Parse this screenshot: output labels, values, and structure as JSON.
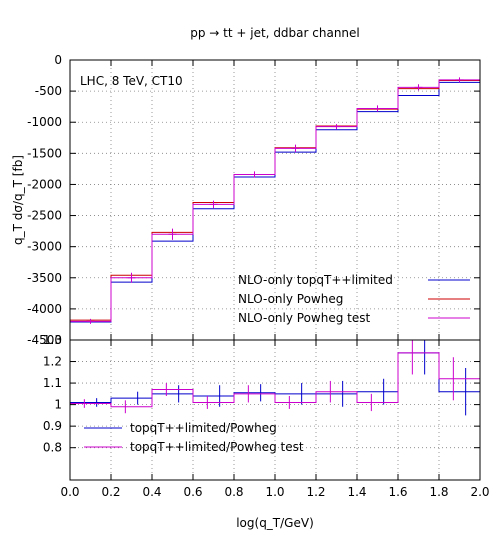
{
  "chart_data": [
    {
      "type": "line",
      "title": "pp → tt + jet, ddbar channel",
      "annotation": "LHC, 8 TeV, CT10",
      "xlabel": "",
      "ylabel": "q_T dσ/q_T [fb]",
      "xlim": [
        0.0,
        2.0
      ],
      "ylim": [
        -4500,
        0
      ],
      "y_ticks": [
        "0",
        "-500",
        "-1000",
        "-1500",
        "-2000",
        "-2500",
        "-3000",
        "-3500",
        "-4000",
        "-4500"
      ],
      "grid": true,
      "legend_position": "bottom-right",
      "x_edges": [
        0.0,
        0.2,
        0.4,
        0.6,
        0.8,
        1.0,
        1.2,
        1.4,
        1.6,
        1.8,
        2.0
      ],
      "series": [
        {
          "name": "NLO-only topqT++limited",
          "color": "#0000cc",
          "values": [
            -4210,
            -3570,
            -2910,
            -2390,
            -1880,
            -1480,
            -1120,
            -830,
            -570,
            -360
          ]
        },
        {
          "name": "NLO-only Powheg",
          "color": "#cc0000",
          "values": [
            -4180,
            -3460,
            -2770,
            -2290,
            -1840,
            -1410,
            -1060,
            -790,
            -460,
            -330
          ]
        },
        {
          "name": "NLO-only Powheg test",
          "color": "#cc00cc",
          "values": [
            -4200,
            -3500,
            -2800,
            -2320,
            -1840,
            -1420,
            -1070,
            -780,
            -440,
            -320
          ],
          "errors": [
            40,
            80,
            90,
            60,
            50,
            60,
            40,
            50,
            50,
            40
          ]
        }
      ]
    },
    {
      "type": "line",
      "xlabel": "log(q_T/GeV)",
      "ylabel": "",
      "xlim": [
        0.0,
        2.0
      ],
      "ylim": [
        0.65,
        1.3
      ],
      "x_ticks": [
        "0.0",
        "0.2",
        "0.4",
        "0.6",
        "0.8",
        "1.0",
        "1.2",
        "1.4",
        "1.6",
        "1.8",
        "2.0"
      ],
      "y_ticks": [
        "1.3",
        "1.2",
        "1.1",
        "1",
        "0.9",
        "0.8"
      ],
      "grid": true,
      "legend_position": "bottom-left",
      "x_edges": [
        0.0,
        0.2,
        0.4,
        0.6,
        0.8,
        1.0,
        1.2,
        1.4,
        1.6,
        1.8,
        2.0
      ],
      "series": [
        {
          "name": "topqT++limited/Powheg",
          "color": "#0000cc",
          "values": [
            1.01,
            1.03,
            1.05,
            1.04,
            1.055,
            1.05,
            1.05,
            1.06,
            1.24,
            1.06
          ],
          "errors": [
            0.02,
            0.03,
            0.04,
            0.05,
            0.04,
            0.05,
            0.06,
            0.06,
            0.1,
            0.11
          ]
        },
        {
          "name": "topqT++limited/Powheg test",
          "color": "#cc00cc",
          "values": [
            1.005,
            0.99,
            1.07,
            1.01,
            1.05,
            1.01,
            1.06,
            1.01,
            1.24,
            1.12
          ],
          "errors": [
            0.02,
            0.03,
            0.03,
            0.03,
            0.04,
            0.03,
            0.05,
            0.04,
            0.1,
            0.1
          ]
        }
      ]
    }
  ]
}
